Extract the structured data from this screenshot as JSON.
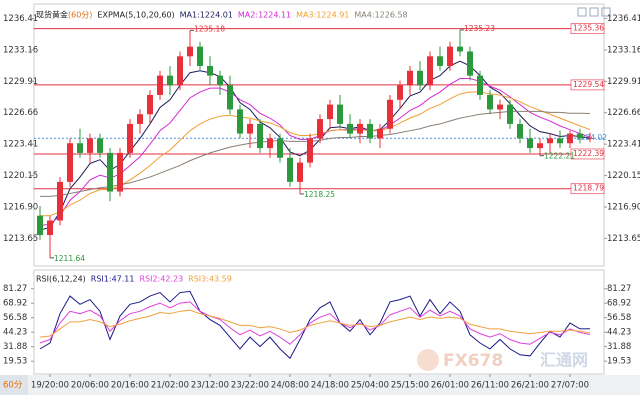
{
  "chart_data": [
    {
      "type": "candlestick",
      "title": "现货黄金",
      "period": "(60分)",
      "indicator": "EXPMA(5,10,20,60)",
      "categories": [
        null,
        "19/20:00",
        null,
        null,
        null,
        "20/06:00",
        null,
        null,
        null,
        "20/16:00",
        null,
        null,
        null,
        "21/02:00",
        null,
        null,
        null,
        "23/12:00",
        null,
        null,
        null,
        "23/22:00",
        null,
        null,
        null,
        "24/08:00",
        null,
        null,
        null,
        "24/18:00",
        null,
        null,
        null,
        "25/04:00",
        null,
        null,
        null,
        "25/15:00",
        null,
        null,
        null,
        "26/01:00",
        null,
        null,
        null,
        "26/11:00",
        null,
        null,
        null,
        "26/21:00",
        null,
        null,
        null,
        "27/07:00",
        null,
        null
      ],
      "open": [
        1216,
        1214,
        1215.5,
        1219.5,
        1223.5,
        1222.5,
        1224,
        1222.5,
        1218.5,
        1222.5,
        1225.5,
        1226.5,
        1228.5,
        1230.5,
        1229.5,
        1232.5,
        1233.5,
        1231.5,
        1230.5,
        1229.5,
        1227,
        1224.5,
        1225.5,
        1223,
        1224,
        1222,
        1219.5,
        1221.5,
        1224,
        1226,
        1227.5,
        1225.5,
        1224.5,
        1225.5,
        1224,
        1225,
        1228,
        1229.5,
        1231,
        1229.5,
        1232.5,
        1231.5,
        1233.5,
        1233,
        1230.5,
        1228.5,
        1227,
        1227.5,
        1225.5,
        1224,
        1223,
        1223.5,
        1224,
        1223.5,
        1224.5,
        1224
      ],
      "high": [
        1217,
        1216,
        1220,
        1224,
        1225,
        1224.5,
        1224.5,
        1223,
        1223,
        1226,
        1227,
        1229,
        1231,
        1231.5,
        1233,
        1235.18,
        1234,
        1232.5,
        1231,
        1230.5,
        1227.5,
        1226,
        1226,
        1224.5,
        1224.5,
        1223,
        1222,
        1224.5,
        1226.5,
        1228,
        1228.5,
        1226.5,
        1226,
        1226,
        1225.5,
        1228.5,
        1230,
        1231.5,
        1232,
        1233,
        1233.5,
        1234,
        1235.23,
        1233.5,
        1231,
        1229,
        1228,
        1228,
        1226,
        1225,
        1224,
        1224.5,
        1224.8,
        1224.8,
        1225,
        1224.6
      ],
      "low": [
        1213.5,
        1211.64,
        1215,
        1219,
        1222,
        1221.5,
        1222,
        1217.5,
        1218,
        1222,
        1224.5,
        1225.5,
        1228,
        1228.5,
        1229,
        1231.5,
        1231,
        1229.5,
        1228.5,
        1226.5,
        1224,
        1223,
        1222.5,
        1222,
        1221.5,
        1219,
        1218.25,
        1221,
        1223.5,
        1225,
        1225,
        1224,
        1223.5,
        1223.5,
        1223,
        1224.5,
        1227,
        1228.5,
        1229,
        1229,
        1231,
        1231,
        1232.5,
        1230,
        1228,
        1226.5,
        1226,
        1225,
        1223.5,
        1222.5,
        1222.21,
        1222.5,
        1223,
        1223,
        1223.5,
        1223.6
      ],
      "close": [
        1214,
        1215.5,
        1219.5,
        1223.5,
        1222.5,
        1224,
        1222.5,
        1218.5,
        1222.5,
        1225.5,
        1226.5,
        1228.5,
        1230.5,
        1229.5,
        1232.5,
        1233.5,
        1231.5,
        1230.5,
        1229.5,
        1227,
        1224.5,
        1225.5,
        1223,
        1224,
        1222,
        1219.5,
        1221.5,
        1224,
        1226,
        1227.5,
        1225.5,
        1224.5,
        1225.5,
        1224,
        1225,
        1228,
        1229.5,
        1231,
        1229.5,
        1232.5,
        1231.5,
        1233.5,
        1233,
        1230.5,
        1228.5,
        1227,
        1227.5,
        1225.5,
        1224,
        1223,
        1223.5,
        1224,
        1223.5,
        1224.5,
        1224,
        1224.02
      ],
      "up_color": "#e8303a",
      "down_color": "#2c9a3c",
      "series": [
        {
          "name": "MA1:1224.01",
          "color": "#1c1c5a",
          "values": [
            1214.5,
            1214.8,
            1216.4,
            1218.8,
            1220,
            1221.4,
            1221.8,
            1220.7,
            1221.3,
            1222.7,
            1224,
            1225.5,
            1227.2,
            1228,
            1229.5,
            1230.8,
            1231,
            1230.8,
            1230.4,
            1229.3,
            1227.7,
            1227,
            1225.7,
            1225.1,
            1224.1,
            1222.6,
            1222.2,
            1222.8,
            1223.9,
            1225.1,
            1225.2,
            1225,
            1225.2,
            1224.8,
            1224.9,
            1225.9,
            1227.1,
            1228.4,
            1228.8,
            1230,
            1230.5,
            1231.5,
            1232,
            1231.5,
            1230.5,
            1229.3,
            1228.7,
            1227.6,
            1226.4,
            1225.3,
            1224.7,
            1224.5,
            1224.2,
            1224.3,
            1224.2,
            1224.01
          ]
        },
        {
          "name": "MA2:1224.11",
          "color": "#d42ad4",
          "values": [
            1215,
            1215.1,
            1216,
            1217.6,
            1218.5,
            1219.7,
            1220.2,
            1219.9,
            1220.3,
            1221.2,
            1222.1,
            1223.4,
            1224.8,
            1225.6,
            1226.9,
            1228.2,
            1228.8,
            1229.2,
            1229.2,
            1228.8,
            1228,
            1227.5,
            1226.6,
            1226.1,
            1225.4,
            1224.3,
            1223.9,
            1223.9,
            1224.3,
            1224.8,
            1224.9,
            1224.9,
            1225,
            1224.8,
            1224.8,
            1225.4,
            1226.1,
            1226.9,
            1227.4,
            1228.2,
            1228.8,
            1229.6,
            1230.2,
            1230.2,
            1229.9,
            1229.4,
            1229,
            1228.3,
            1227.5,
            1226.7,
            1226.2,
            1225.8,
            1225.3,
            1224.9,
            1224.5,
            1224.11
          ]
        },
        {
          "name": "MA3:1224.91",
          "color": "#f0a030",
          "values": [
            1216,
            1216,
            1216.4,
            1217.1,
            1217.6,
            1218.3,
            1218.7,
            1218.7,
            1219.1,
            1219.7,
            1220.4,
            1221.2,
            1222.1,
            1222.8,
            1223.8,
            1224.8,
            1225.5,
            1226,
            1226.3,
            1226.4,
            1226.2,
            1226.1,
            1225.8,
            1225.6,
            1225.2,
            1224.6,
            1224.3,
            1224.3,
            1224.5,
            1224.8,
            1224.9,
            1224.8,
            1224.9,
            1224.8,
            1224.8,
            1225.1,
            1225.6,
            1226.1,
            1226.5,
            1227.1,
            1227.5,
            1228.1,
            1228.6,
            1228.8,
            1228.8,
            1228.6,
            1228.5,
            1228.2,
            1227.8,
            1227.3,
            1226.9,
            1226.5,
            1226.1,
            1225.7,
            1225.3,
            1224.91
          ]
        },
        {
          "name": "MA4:1226.58",
          "color": "#8a7f74",
          "values": [
            1218,
            1218,
            1218.1,
            1218.3,
            1218.5,
            1218.7,
            1218.9,
            1219,
            1219.2,
            1219.4,
            1219.7,
            1220,
            1220.4,
            1220.8,
            1221.2,
            1221.7,
            1222.1,
            1222.5,
            1222.8,
            1223.1,
            1223.3,
            1223.5,
            1223.6,
            1223.7,
            1223.8,
            1223.7,
            1223.7,
            1223.7,
            1223.8,
            1224,
            1224.1,
            1224.1,
            1224.2,
            1224.2,
            1224.3,
            1224.4,
            1224.6,
            1224.8,
            1225,
            1225.3,
            1225.5,
            1225.8,
            1226.1,
            1226.3,
            1226.5,
            1226.6,
            1226.7,
            1226.8,
            1226.8,
            1226.8,
            1226.8,
            1226.7,
            1226.7,
            1226.6,
            1226.6,
            1226.58
          ]
        }
      ],
      "ylim": [
        1211.0,
        1237.5
      ],
      "yticks": [
        1236.41,
        1233.16,
        1229.91,
        1226.66,
        1223.41,
        1220.15,
        {
          "value": 1216.9,
          "label": "1216.90"
        },
        1213.65
      ],
      "levels": [
        1235.36,
        1229.54,
        1222.39,
        1218.79
      ],
      "level_color": "#e03040",
      "last_price": {
        "value": 1224.02,
        "label": "1224.02"
      },
      "last_color": "#4a8fe0",
      "extreme_labels": [
        1211.64,
        1235.18,
        1218.25,
        1235.23,
        1222.21
      ]
    },
    {
      "type": "line",
      "title": "RSI(6,12,24)",
      "series": [
        {
          "name": "RSI1:47.11",
          "color": "#1a1a8a",
          "values": [
            30,
            35,
            60,
            75,
            68,
            72,
            62,
            38,
            58,
            68,
            70,
            75,
            78,
            70,
            78,
            79,
            62,
            55,
            50,
            40,
            30,
            40,
            32,
            40,
            30,
            22,
            38,
            55,
            65,
            70,
            52,
            45,
            55,
            42,
            52,
            70,
            72,
            75,
            58,
            72,
            60,
            70,
            62,
            42,
            35,
            30,
            38,
            30,
            25,
            24,
            35,
            45,
            40,
            52,
            47,
            47.11
          ]
        },
        {
          "name": "RSI2:42.23",
          "color": "#e040e0",
          "values": [
            35,
            38,
            52,
            62,
            60,
            63,
            58,
            45,
            54,
            60,
            62,
            66,
            69,
            65,
            69,
            70,
            62,
            58,
            55,
            48,
            42,
            46,
            41,
            45,
            40,
            34,
            42,
            52,
            57,
            60,
            52,
            48,
            52,
            46,
            50,
            59,
            62,
            65,
            57,
            63,
            58,
            62,
            58,
            47,
            43,
            40,
            43,
            38,
            35,
            34,
            39,
            44,
            42,
            47,
            44,
            42.23
          ]
        },
        {
          "name": "RSI3:43.59",
          "color": "#f0a040",
          "values": [
            40,
            41,
            47,
            53,
            53,
            55,
            53,
            49,
            51,
            54,
            56,
            58,
            61,
            60,
            62,
            63,
            60,
            58,
            56,
            53,
            50,
            50,
            48,
            49,
            47,
            44,
            46,
            50,
            52,
            54,
            52,
            50,
            51,
            49,
            50,
            53,
            55,
            57,
            55,
            57,
            56,
            57,
            56,
            51,
            49,
            47,
            47,
            45,
            44,
            43,
            44,
            45,
            45,
            46,
            45,
            43.59
          ]
        }
      ],
      "ylim": [
        10.3,
        93.8
      ],
      "yticks": [
        81.27,
        68.92,
        56.58,
        44.23,
        31.88,
        19.53
      ]
    }
  ],
  "period_tab": "60分",
  "watermark": "FX678",
  "watermark_cn": "汇通网"
}
